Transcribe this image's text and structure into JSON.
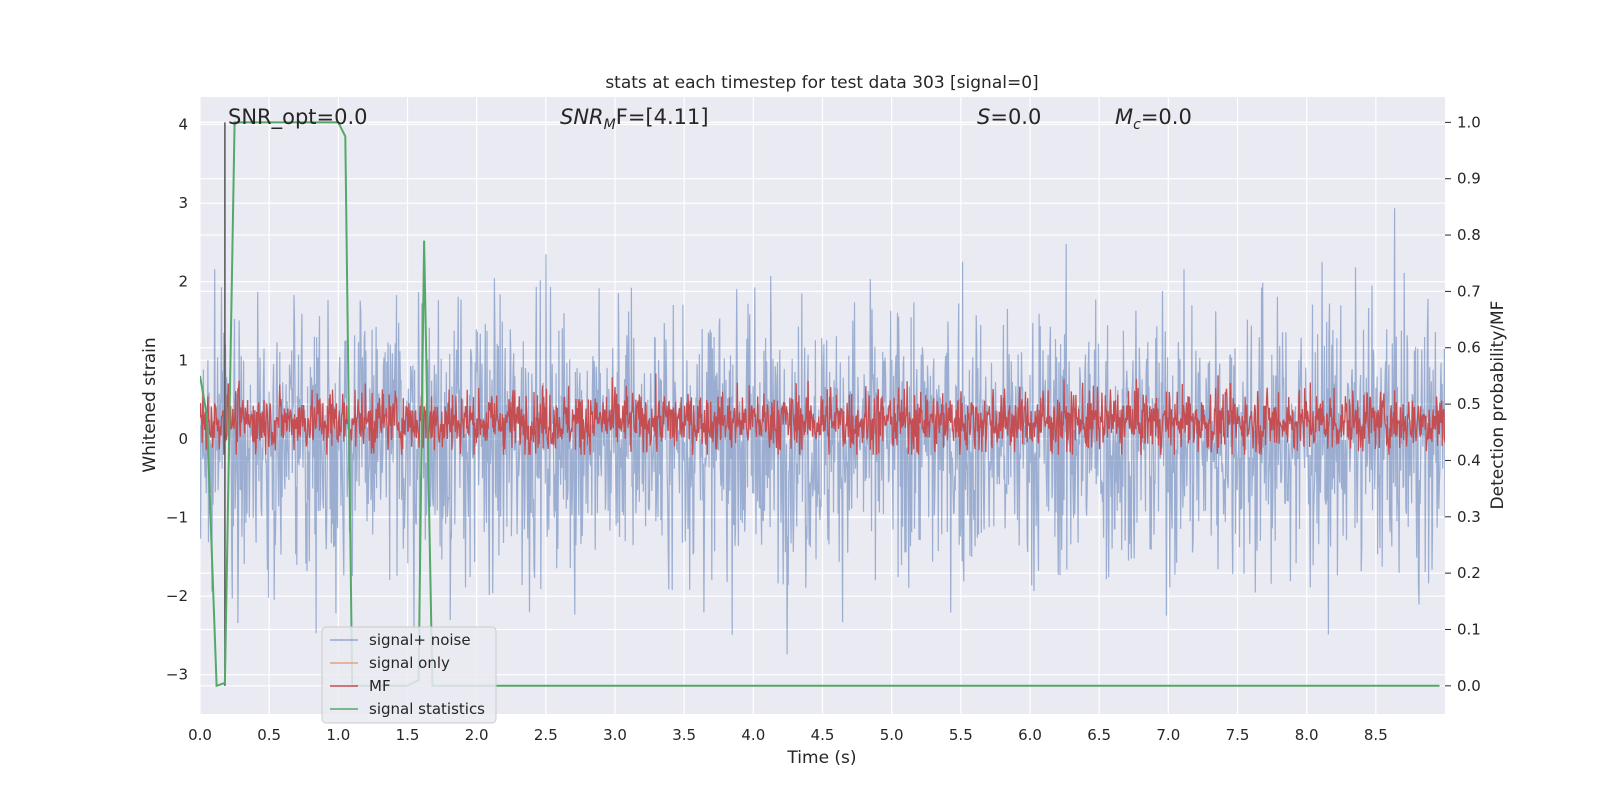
{
  "chart_data": {
    "type": "line",
    "title": "stats at each timestep for test data 303 [signal=0]",
    "xlabel": "Time (s)",
    "ylabel": "Whitened strain",
    "ylabel_right": "Detection probability/MF",
    "xlim": [
      0.0,
      9.0
    ],
    "ylim": [
      -3.5,
      4.35
    ],
    "ylim_right": [
      -0.05,
      1.045
    ],
    "x_ticks": [
      "0.0",
      "0.5",
      "1.0",
      "1.5",
      "2.0",
      "2.5",
      "3.0",
      "3.5",
      "4.0",
      "4.5",
      "5.0",
      "5.5",
      "6.0",
      "6.5",
      "7.0",
      "7.5",
      "8.0",
      "8.5"
    ],
    "y_ticks": [
      "−3",
      "−2",
      "−1",
      "0",
      "1",
      "2",
      "3",
      "4"
    ],
    "y_ticks_right": [
      "0.0",
      "0.1",
      "0.2",
      "0.3",
      "0.4",
      "0.5",
      "0.6",
      "0.7",
      "0.8",
      "0.9",
      "1.0"
    ],
    "grid": true,
    "legend_position": "lower-left",
    "annotations": {
      "snr_opt": "SNR_opt=0.0",
      "snr_mf_prefix": "SNR",
      "snr_mf_sub": "M",
      "snr_mf_suffix": "F=[4.11]",
      "s_var": "S",
      "s_value": "=0.0",
      "mc_var": "M",
      "mc_sub": "c",
      "mc_value": "=0.0"
    },
    "series": [
      {
        "name": "signal+ noise",
        "axis": "left",
        "color": "#4c72b0",
        "description": "whitened noise, approx amplitude 1.1 (spikes to about ±3.2)",
        "noise_sigma": 1.1,
        "x_range": [
          0.0,
          9.0
        ]
      },
      {
        "name": "signal only",
        "axis": "left",
        "color": "#dd8452",
        "x": [],
        "y": []
      },
      {
        "name": "MF",
        "axis": "right",
        "color": "#c44e52",
        "description": "matched filter output, baseline ~0.47 with peaks up to ~0.58",
        "baseline": 0.47,
        "x_range": [
          0.0,
          9.0
        ]
      },
      {
        "name": "signal statistics",
        "axis": "right",
        "color": "#55a868",
        "x": [
          0.0,
          0.05,
          0.12,
          0.18,
          0.25,
          0.5,
          1.0,
          1.05,
          1.1,
          1.5,
          1.58,
          1.62,
          1.68,
          2.0,
          5.0,
          6.0,
          8.0,
          8.6,
          8.96
        ],
        "y": [
          0.55,
          0.48,
          0.0,
          0.005,
          1.0,
          1.0,
          1.0,
          0.975,
          0.0,
          0.0,
          0.01,
          0.79,
          0.0,
          0.0,
          0.0,
          0.0,
          0.0,
          0.0,
          0.0
        ]
      }
    ],
    "vertical_line": {
      "x": 0.18,
      "color": "#555555"
    }
  }
}
